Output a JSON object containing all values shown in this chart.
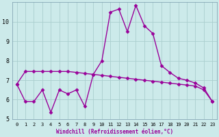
{
  "line1_x": [
    0,
    1,
    2,
    3,
    4,
    5,
    6,
    7,
    8,
    9,
    10,
    11,
    12,
    13,
    14,
    15,
    16,
    17,
    18,
    19,
    20,
    21,
    22,
    23
  ],
  "line1_y": [
    6.8,
    7.45,
    7.45,
    7.45,
    7.45,
    7.45,
    7.45,
    7.4,
    7.35,
    7.3,
    7.25,
    7.2,
    7.15,
    7.1,
    7.05,
    7.0,
    6.95,
    6.9,
    6.85,
    6.8,
    6.75,
    6.7,
    6.5,
    5.9
  ],
  "line2_x": [
    0,
    1,
    2,
    3,
    4,
    5,
    6,
    7,
    8,
    9,
    10,
    11,
    12,
    13,
    14,
    15,
    16,
    17,
    18,
    19,
    20,
    21,
    22,
    23
  ],
  "line2_y": [
    6.8,
    5.9,
    5.9,
    6.5,
    5.35,
    6.5,
    6.3,
    6.5,
    5.65,
    7.3,
    8.0,
    10.5,
    10.65,
    9.5,
    10.85,
    9.8,
    9.4,
    7.75,
    7.4,
    7.1,
    7.0,
    6.85,
    6.6,
    5.9
  ],
  "color": "#990099",
  "bg_color": "#cceaea",
  "xlabel": "Windchill (Refroidissement éolien,°C)",
  "xlim": [
    -0.5,
    23.5
  ],
  "ylim": [
    5,
    11
  ],
  "yticks": [
    5,
    6,
    7,
    8,
    9,
    10
  ],
  "xticks": [
    0,
    1,
    2,
    3,
    4,
    5,
    6,
    7,
    8,
    9,
    10,
    11,
    12,
    13,
    14,
    15,
    16,
    17,
    18,
    19,
    20,
    21,
    22,
    23
  ],
  "grid_color": "#aacece",
  "marker": "D",
  "markersize": 2.5,
  "linewidth": 1.0,
  "xlabel_fontsize": 5.5,
  "tick_fontsize_x": 5.0,
  "tick_fontsize_y": 6.0
}
